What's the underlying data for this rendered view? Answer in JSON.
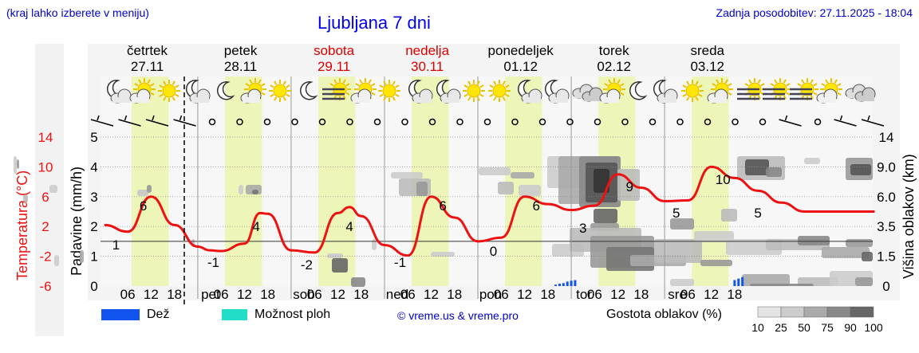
{
  "header": {
    "left_note": "(kraj lahko izberete v meniju)",
    "title": "Ljubljana 7 dni",
    "updated": "Zadnja posodobitev: 27.11.2025 - 18:04"
  },
  "days": [
    {
      "name": "četrtek",
      "date": "27.11",
      "weekend": false
    },
    {
      "name": "petek",
      "date": "28.11",
      "weekend": false
    },
    {
      "name": "sobota",
      "date": "29.11",
      "weekend": true
    },
    {
      "name": "nedelja",
      "date": "30.11",
      "weekend": true
    },
    {
      "name": "ponedeljek",
      "date": "01.12",
      "weekend": false
    },
    {
      "name": "torek",
      "date": "02.12",
      "weekend": false
    },
    {
      "name": "sreda",
      "date": "03.12",
      "weekend": false
    }
  ],
  "axis_labels": {
    "temperature": "Temperatura (°C)",
    "precipitation": "Padavine (mm/h)",
    "cloud_height": "Višina oblakov (km)"
  },
  "colors": {
    "temperature_line": "#ee1111",
    "daylight": "#eef5b8",
    "rain": "#1155ee",
    "storm_chance": "#22ddc8",
    "weekend_text": "#dd0000",
    "link_blue": "#0000cc"
  },
  "legend": {
    "rain_label": "Dež",
    "storm_label": "Možnost ploh",
    "copyright": "© vreme.us & vreme.pro",
    "cloud_density_label": "Gostota oblakov (%)",
    "cloud_density_steps": [
      "10",
      "25",
      "50",
      "75",
      "90",
      "100"
    ]
  },
  "chart_data": {
    "type": "line",
    "title": "Ljubljana 7 dni",
    "x_tick_labels": [
      "06",
      "12",
      "18",
      "pet",
      "06",
      "12",
      "18",
      "sob",
      "06",
      "12",
      "18",
      "ned",
      "06",
      "12",
      "18",
      "pon",
      "06",
      "12",
      "18",
      "tor",
      "06",
      "12",
      "18",
      "sre",
      "06",
      "12",
      "18"
    ],
    "temperature_axis_ticks": [
      "14",
      "10",
      "6",
      "2",
      "-2",
      "-6"
    ],
    "precipitation_axis_ticks": [
      "5",
      "4",
      "3",
      "2",
      "1",
      "0"
    ],
    "cloud_height_axis_ticks": [
      "14",
      "9.0",
      "6.0",
      "3.5",
      "1.5",
      "0"
    ],
    "temperature_ylim": [
      -6,
      14
    ],
    "precipitation_ylim": [
      0,
      5
    ],
    "series": [
      {
        "name": "Temperatura",
        "x_hours": [
          0,
          6,
          12,
          18,
          24,
          27,
          30,
          36,
          40,
          42,
          48,
          54,
          60,
          63,
          66,
          72,
          78,
          84,
          90,
          96,
          102,
          108,
          114,
          120,
          126,
          132,
          138,
          144,
          150,
          156,
          162,
          168,
          174,
          180,
          186,
          192,
          198
        ],
        "values": [
          2.2,
          1.3,
          6.0,
          2.2,
          -0.7,
          -1.2,
          -1.3,
          -0.3,
          3.8,
          3.7,
          -1.2,
          -1.5,
          3.8,
          4.6,
          3.4,
          -0.5,
          -1.9,
          6.0,
          3.2,
          0.0,
          0.5,
          6.0,
          5.0,
          4.2,
          4.8,
          9.0,
          7.2,
          5.4,
          5.5,
          10.0,
          8.5,
          6.8,
          5.2,
          4.0,
          4.0,
          4.0,
          4.0
        ]
      }
    ],
    "temperature_labels": [
      {
        "hour": 3,
        "text": "1"
      },
      {
        "hour": 10,
        "text": "6"
      },
      {
        "hour": 28,
        "text": "-1"
      },
      {
        "hour": 39,
        "text": "4"
      },
      {
        "hour": 52,
        "text": "-2"
      },
      {
        "hour": 63,
        "text": "4"
      },
      {
        "hour": 76,
        "text": "-1"
      },
      {
        "hour": 87,
        "text": "6"
      },
      {
        "hour": 100,
        "text": "0"
      },
      {
        "hour": 111,
        "text": "6"
      },
      {
        "hour": 123,
        "text": "3"
      },
      {
        "hour": 135,
        "text": "9"
      },
      {
        "hour": 147,
        "text": "5"
      },
      {
        "hour": 159,
        "text": "10"
      },
      {
        "hour": 168,
        "text": "5"
      }
    ],
    "precipitation_mm_h": [
      {
        "hour": 116,
        "value": 0.05
      },
      {
        "hour": 117,
        "value": 0.08
      },
      {
        "hour": 118,
        "value": 0.1
      },
      {
        "hour": 119,
        "value": 0.15
      },
      {
        "hour": 120,
        "value": 0.18
      },
      {
        "hour": 121,
        "value": 0.2
      },
      {
        "hour": 162,
        "value": 0.2
      },
      {
        "hour": 163,
        "value": 0.25
      },
      {
        "hour": 164,
        "value": 0.3
      }
    ],
    "grid": true,
    "legend_position": "bottom"
  }
}
